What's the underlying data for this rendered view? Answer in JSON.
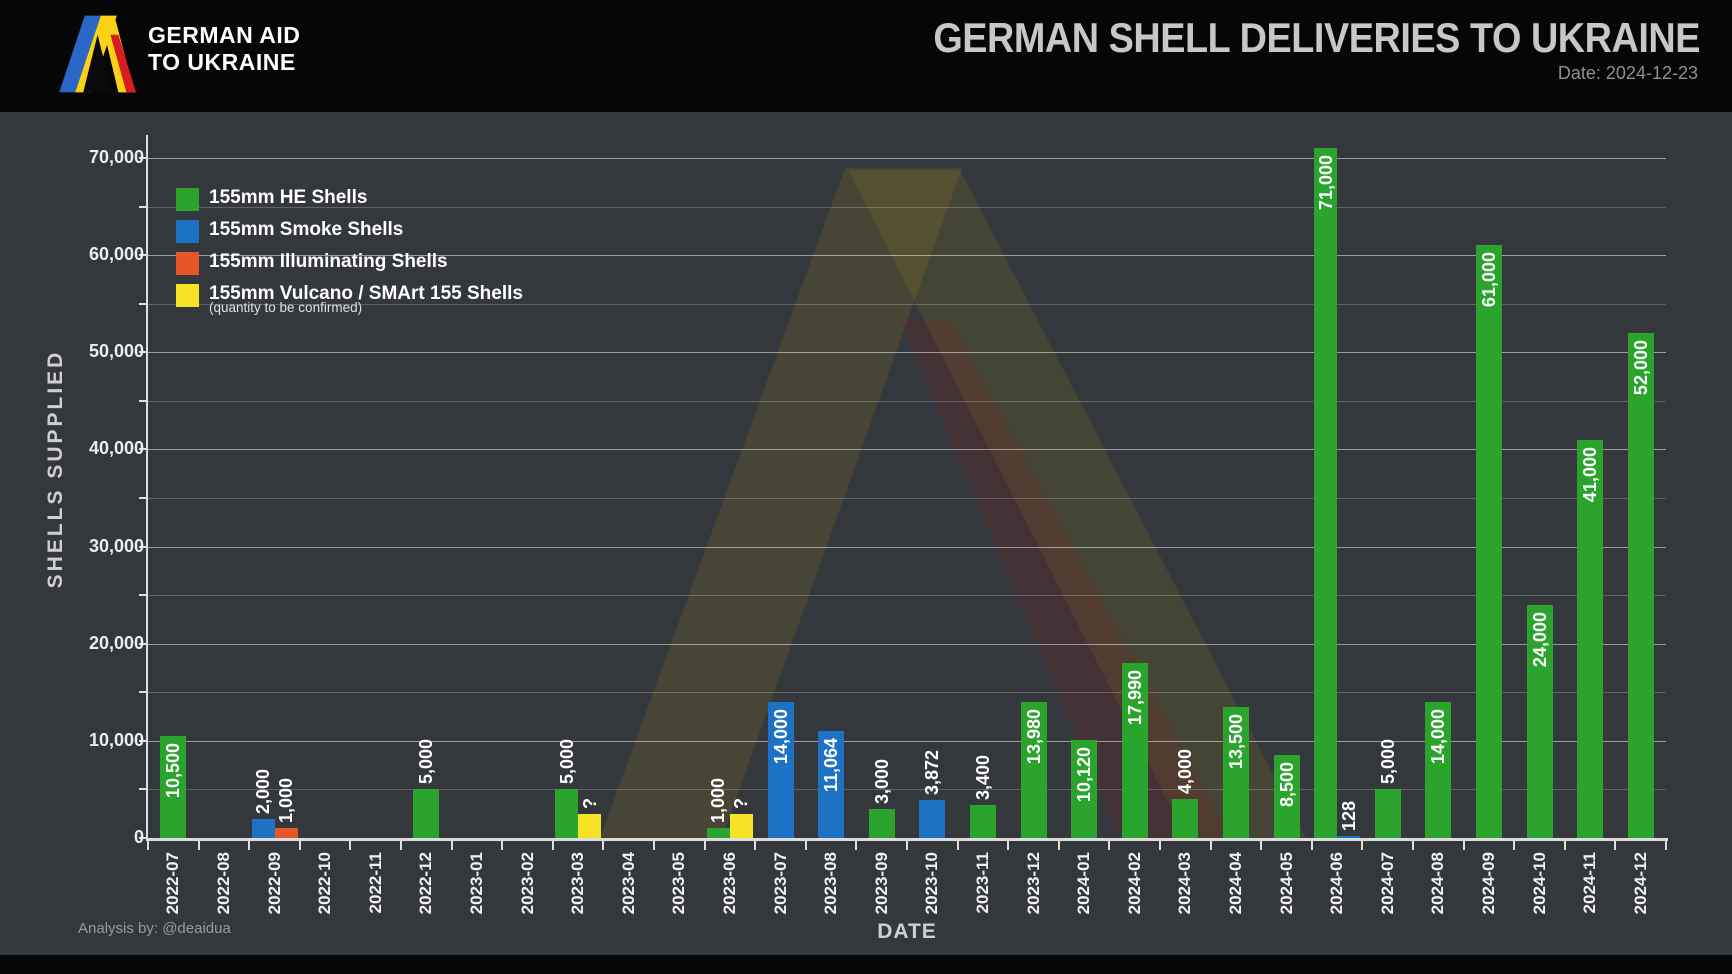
{
  "header": {
    "logo_line1": "GERMAN AID",
    "logo_line2": "TO UKRAINE",
    "title": "GERMAN SHELL DELIVERIES TO UKRAINE",
    "date_label": "Date: 2024-12-23"
  },
  "footer": {
    "credit": "Analysis by: @deaidua"
  },
  "colors": {
    "background": "#34373B",
    "header_background": "#060606",
    "he_green": "#2AA42C",
    "smoke_blue": "#1D72C4",
    "illuminating_orange": "#E85529",
    "vulcano_yellow": "#F7E325",
    "logo_blue": "#2B66C9",
    "logo_yellow": "#FCD314",
    "logo_red": "#D81C22",
    "title_gray": "#C7C7C7"
  },
  "legend": {
    "items": [
      {
        "label": "155mm HE Shells",
        "color": "#2AA42C"
      },
      {
        "label": "155mm Smoke Shells",
        "color": "#1D72C4"
      },
      {
        "label": "155mm Illuminating Shells",
        "color": "#E85529"
      },
      {
        "label": "155mm Vulcano / SMArt 155 Shells",
        "color": "#F7E325"
      }
    ],
    "note": "(quantity to be confirmed)"
  },
  "chart_data": {
    "type": "bar",
    "title": "GERMAN SHELL DELIVERIES TO UKRAINE",
    "xlabel": "DATE",
    "ylabel": "SHELLS SUPPLIED",
    "ylim": [
      0,
      71000
    ],
    "ytick_major": 10000,
    "ytick_minor": 5000,
    "grid": true,
    "legend_position": "top-left",
    "unknown_label": "?",
    "inside_label_threshold": 8000,
    "categories": [
      "2022-07",
      "2022-08",
      "2022-09",
      "2022-10",
      "2022-11",
      "2022-12",
      "2023-01",
      "2023-02",
      "2023-03",
      "2023-04",
      "2023-05",
      "2023-06",
      "2023-07",
      "2023-08",
      "2023-09",
      "2023-10",
      "2023-11",
      "2023-12",
      "2024-01",
      "2024-02",
      "2024-03",
      "2024-04",
      "2024-05",
      "2024-06",
      "2024-07",
      "2024-08",
      "2024-09",
      "2024-10",
      "2024-11",
      "2024-12"
    ],
    "series": [
      {
        "name": "155mm HE Shells",
        "color": "#2AA42C",
        "data": {
          "2022-07": 10500,
          "2022-12": 5000,
          "2023-03": 5000,
          "2023-06": 1000,
          "2023-09": 3000,
          "2023-11": 3400,
          "2023-12": 13980,
          "2024-01": 10120,
          "2024-02": 17990,
          "2024-03": 4000,
          "2024-04": 13500,
          "2024-05": 8500,
          "2024-06": 71000,
          "2024-07": 5000,
          "2024-08": 14000,
          "2024-09": 61000,
          "2024-10": 24000,
          "2024-11": 41000,
          "2024-12": 52000
        }
      },
      {
        "name": "155mm Smoke Shells",
        "color": "#1D72C4",
        "data": {
          "2022-09": 2000,
          "2023-07": 14000,
          "2023-08": 11064,
          "2023-10": 3872,
          "2024-06": 128
        }
      },
      {
        "name": "155mm Illuminating Shells",
        "color": "#E85529",
        "data": {
          "2022-09": 1000
        }
      },
      {
        "name": "155mm Vulcano / SMArt 155 Shells",
        "color": "#F7E325",
        "estimated": true,
        "data": {
          "2023-03": 2500,
          "2023-06": 2500
        }
      }
    ]
  }
}
